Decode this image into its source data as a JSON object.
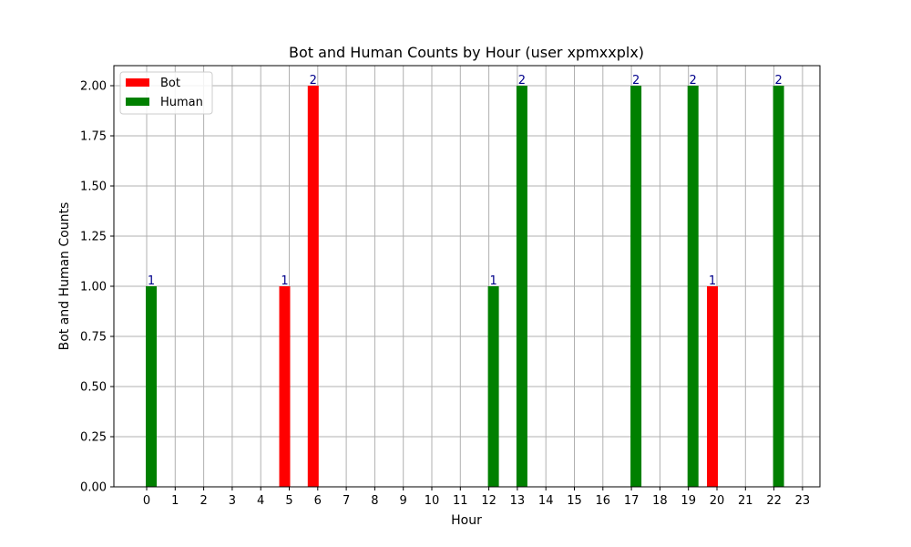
{
  "chart_data": {
    "type": "bar",
    "title": "Bot and Human Counts by Hour (user xpmxxplx)",
    "xlabel": "Hour",
    "ylabel": "Bot and Human Counts",
    "categories": [
      0,
      1,
      2,
      3,
      4,
      5,
      6,
      7,
      8,
      9,
      10,
      11,
      12,
      13,
      14,
      15,
      16,
      17,
      18,
      19,
      20,
      21,
      22,
      23
    ],
    "ylim": [
      0,
      2.1
    ],
    "yticks": [
      "0.00",
      "0.25",
      "0.50",
      "0.75",
      "1.00",
      "1.25",
      "1.50",
      "1.75",
      "2.00"
    ],
    "grid": true,
    "legend_position": "top-left",
    "series": [
      {
        "name": "Bot",
        "color": "#ff0000",
        "values": [
          0,
          0,
          0,
          0,
          0,
          1,
          2,
          0,
          0,
          0,
          0,
          0,
          0,
          0,
          0,
          0,
          0,
          0,
          0,
          0,
          1,
          0,
          0,
          0
        ]
      },
      {
        "name": "Human",
        "color": "#008000",
        "values": [
          1,
          0,
          0,
          0,
          0,
          0,
          0,
          0,
          0,
          0,
          0,
          0,
          1,
          2,
          0,
          0,
          0,
          2,
          0,
          2,
          0,
          0,
          2,
          0
        ]
      }
    ]
  }
}
